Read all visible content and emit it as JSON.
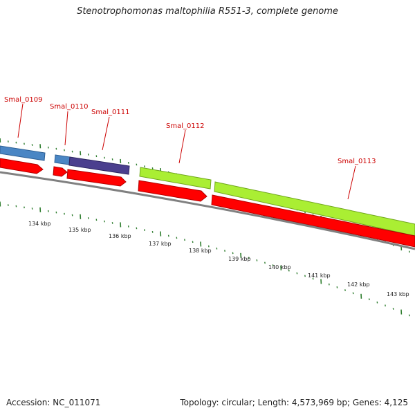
{
  "title": "Stenotrophomonas maltophilia R551-3, complete genome",
  "footer": {
    "accession": "Accession: NC_011071",
    "genome_info": "Topology: circular; Length: 4,573,969 bp; Genes: 4,125"
  },
  "colors": {
    "cds_forward": "#ff0000",
    "gene_blue": "#4a86c4",
    "gene_purple": "#4b3f8e",
    "gene_green": "#aaee33",
    "backbone": "#808080",
    "tick": "#2e7d2e",
    "label": "#cc0000"
  },
  "gene_labels": [
    {
      "name": "Smal_0109",
      "text": "Smal_0109"
    },
    {
      "name": "Smal_0110",
      "text": "Smal_0110"
    },
    {
      "name": "Smal_0111",
      "text": "Smal_0111"
    },
    {
      "name": "Smal_0112",
      "text": "Smal_0112"
    },
    {
      "name": "Smal_0113",
      "text": "Smal_0113"
    }
  ],
  "scale_labels": [
    "134 kbp",
    "135 kbp",
    "136 kbp",
    "137 kbp",
    "138 kbp",
    "139 kbp",
    "140 kbp",
    "141 kbp",
    "142 kbp",
    "143 kbp"
  ]
}
